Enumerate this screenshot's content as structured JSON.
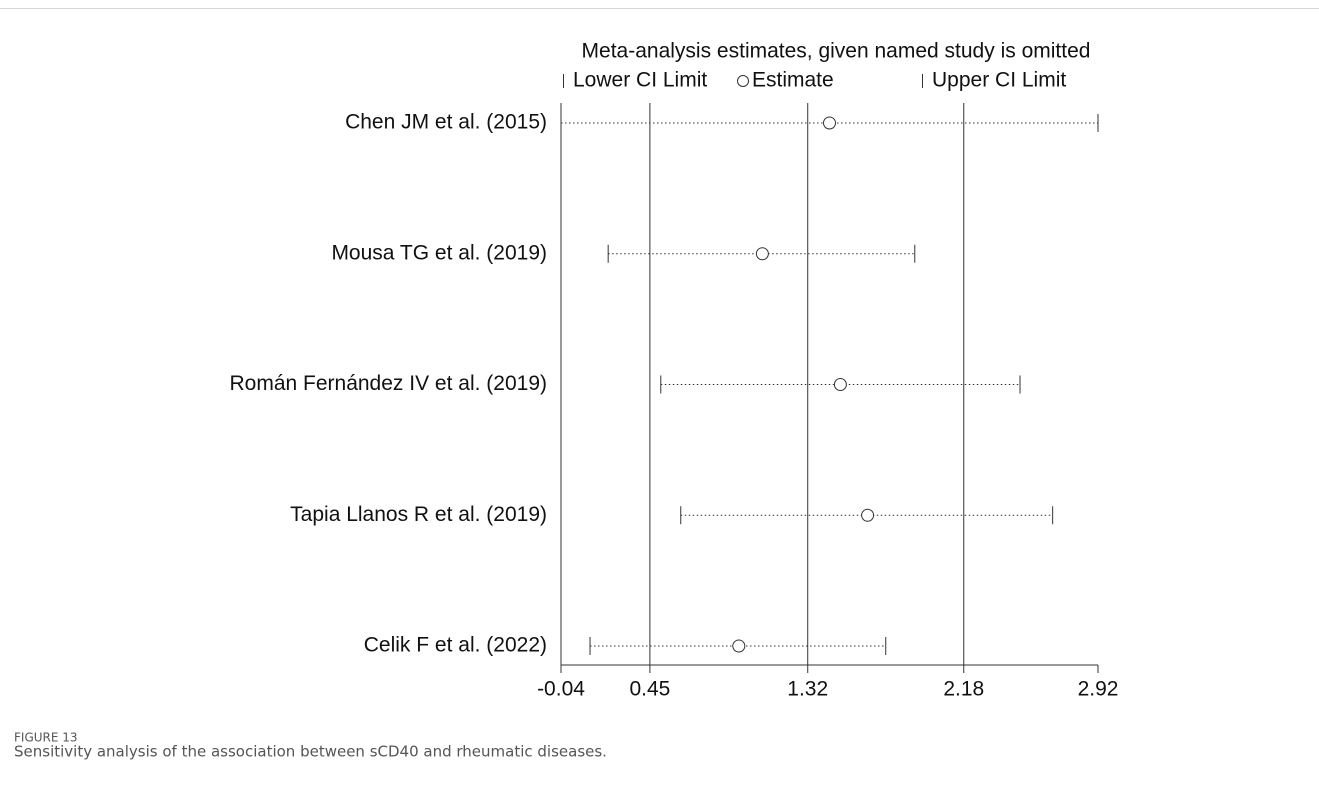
{
  "chart_data": {
    "type": "interval",
    "title": "Meta-analysis estimates, given named study is omitted",
    "categories": [
      "Chen JM et al. (2015)",
      "Mousa TG et al. (2019)",
      "Román Fernández IV et al. (2019)",
      "Tapia Llanos R et al. (2019)",
      "Celik F et al. (2022)"
    ],
    "series": [
      {
        "name": "Lower CI Limit",
        "color": "#333333",
        "values": [
          -0.04,
          0.22,
          0.51,
          0.62,
          0.12
        ]
      },
      {
        "name": "Estimate",
        "color": "#333333",
        "values": [
          1.44,
          1.07,
          1.5,
          1.65,
          0.94
        ]
      },
      {
        "name": "Upper CI Limit",
        "color": "#333333",
        "values": [
          2.92,
          1.91,
          2.49,
          2.67,
          1.75
        ]
      }
    ],
    "xlim": [
      -0.04,
      2.92
    ],
    "xticks": [
      -0.04,
      0.45,
      1.32,
      2.18,
      2.92
    ],
    "grid": true
  },
  "caption": {
    "label": "FIGURE 13",
    "text": "Sensitivity analysis of the association between sCD40 and rheumatic diseases."
  }
}
